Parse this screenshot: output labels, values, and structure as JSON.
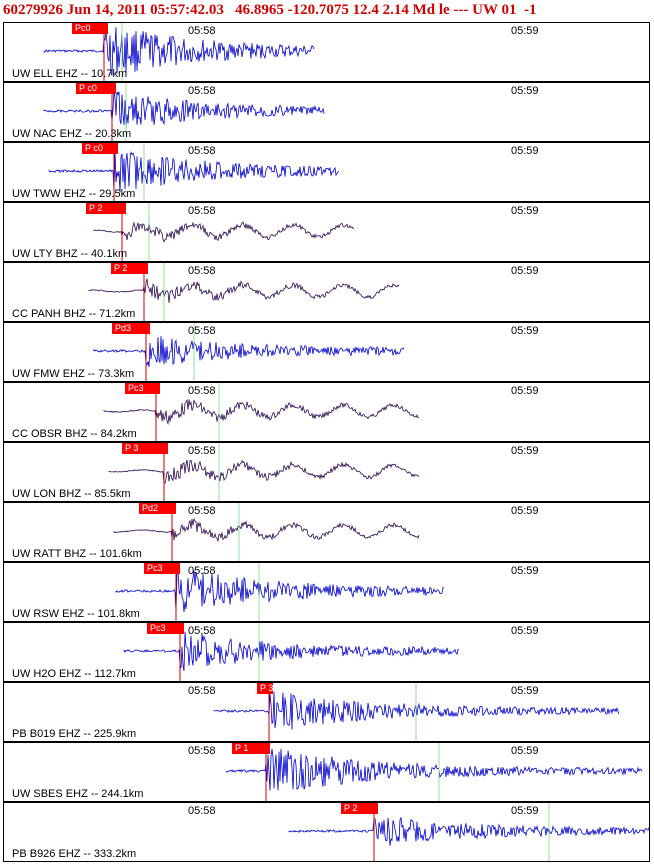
{
  "header": {
    "text": "60279926 Jun 14, 2011 05:57:42.03   46.8965 -120.7075 12.4 2.14 Md le --- UW 01  -1"
  },
  "colors": {
    "header_text": "#cc0000",
    "ehz_trace": "#0000cc",
    "bhz_trace": "#2a0a4a",
    "pick_flag": "#ff0000",
    "pick_line": "#cc0000",
    "green_marker": "#99dd99"
  },
  "time_ticks": [
    "05:58",
    "05:59"
  ],
  "panels": [
    {
      "label": "UW ELL EHZ -- 10.7km",
      "pick": "Pc0",
      "type": "EHZ"
    },
    {
      "label": "UW NAC EHZ -- 20.3km",
      "pick": "P c0",
      "type": "EHZ"
    },
    {
      "label": "UW TWW EHZ -- 29.5km",
      "pick": "P c0",
      "type": "EHZ"
    },
    {
      "label": "UW LTY BHZ -- 40.1km",
      "pick": "P 2",
      "type": "BHZ"
    },
    {
      "label": "CC PANH BHZ -- 71.2km",
      "pick": "P 2",
      "type": "BHZ"
    },
    {
      "label": "UW FMW EHZ -- 73.3km",
      "pick": "Pd3",
      "type": "EHZ"
    },
    {
      "label": "CC OBSR BHZ -- 84.2km",
      "pick": "Pc3",
      "type": "BHZ"
    },
    {
      "label": "UW LON BHZ -- 85.5km",
      "pick": "P 3",
      "type": "BHZ"
    },
    {
      "label": "UW RATT BHZ -- 101.6km",
      "pick": "Pd2",
      "type": "BHZ"
    },
    {
      "label": "UW RSW EHZ -- 101.8km",
      "pick": "Pc3",
      "type": "EHZ"
    },
    {
      "label": "UW H2O EHZ -- 112.7km",
      "pick": "Pc3",
      "type": "EHZ"
    },
    {
      "label": "PB B019 EHZ -- 225.9km",
      "pick": "P 3",
      "type": "EHZ"
    },
    {
      "label": "UW SBES EHZ -- 244.1km",
      "pick": "P 1",
      "type": "EHZ"
    },
    {
      "label": "PB B926 EHZ -- 333.2km",
      "pick": "P 2",
      "type": "EHZ"
    }
  ]
}
